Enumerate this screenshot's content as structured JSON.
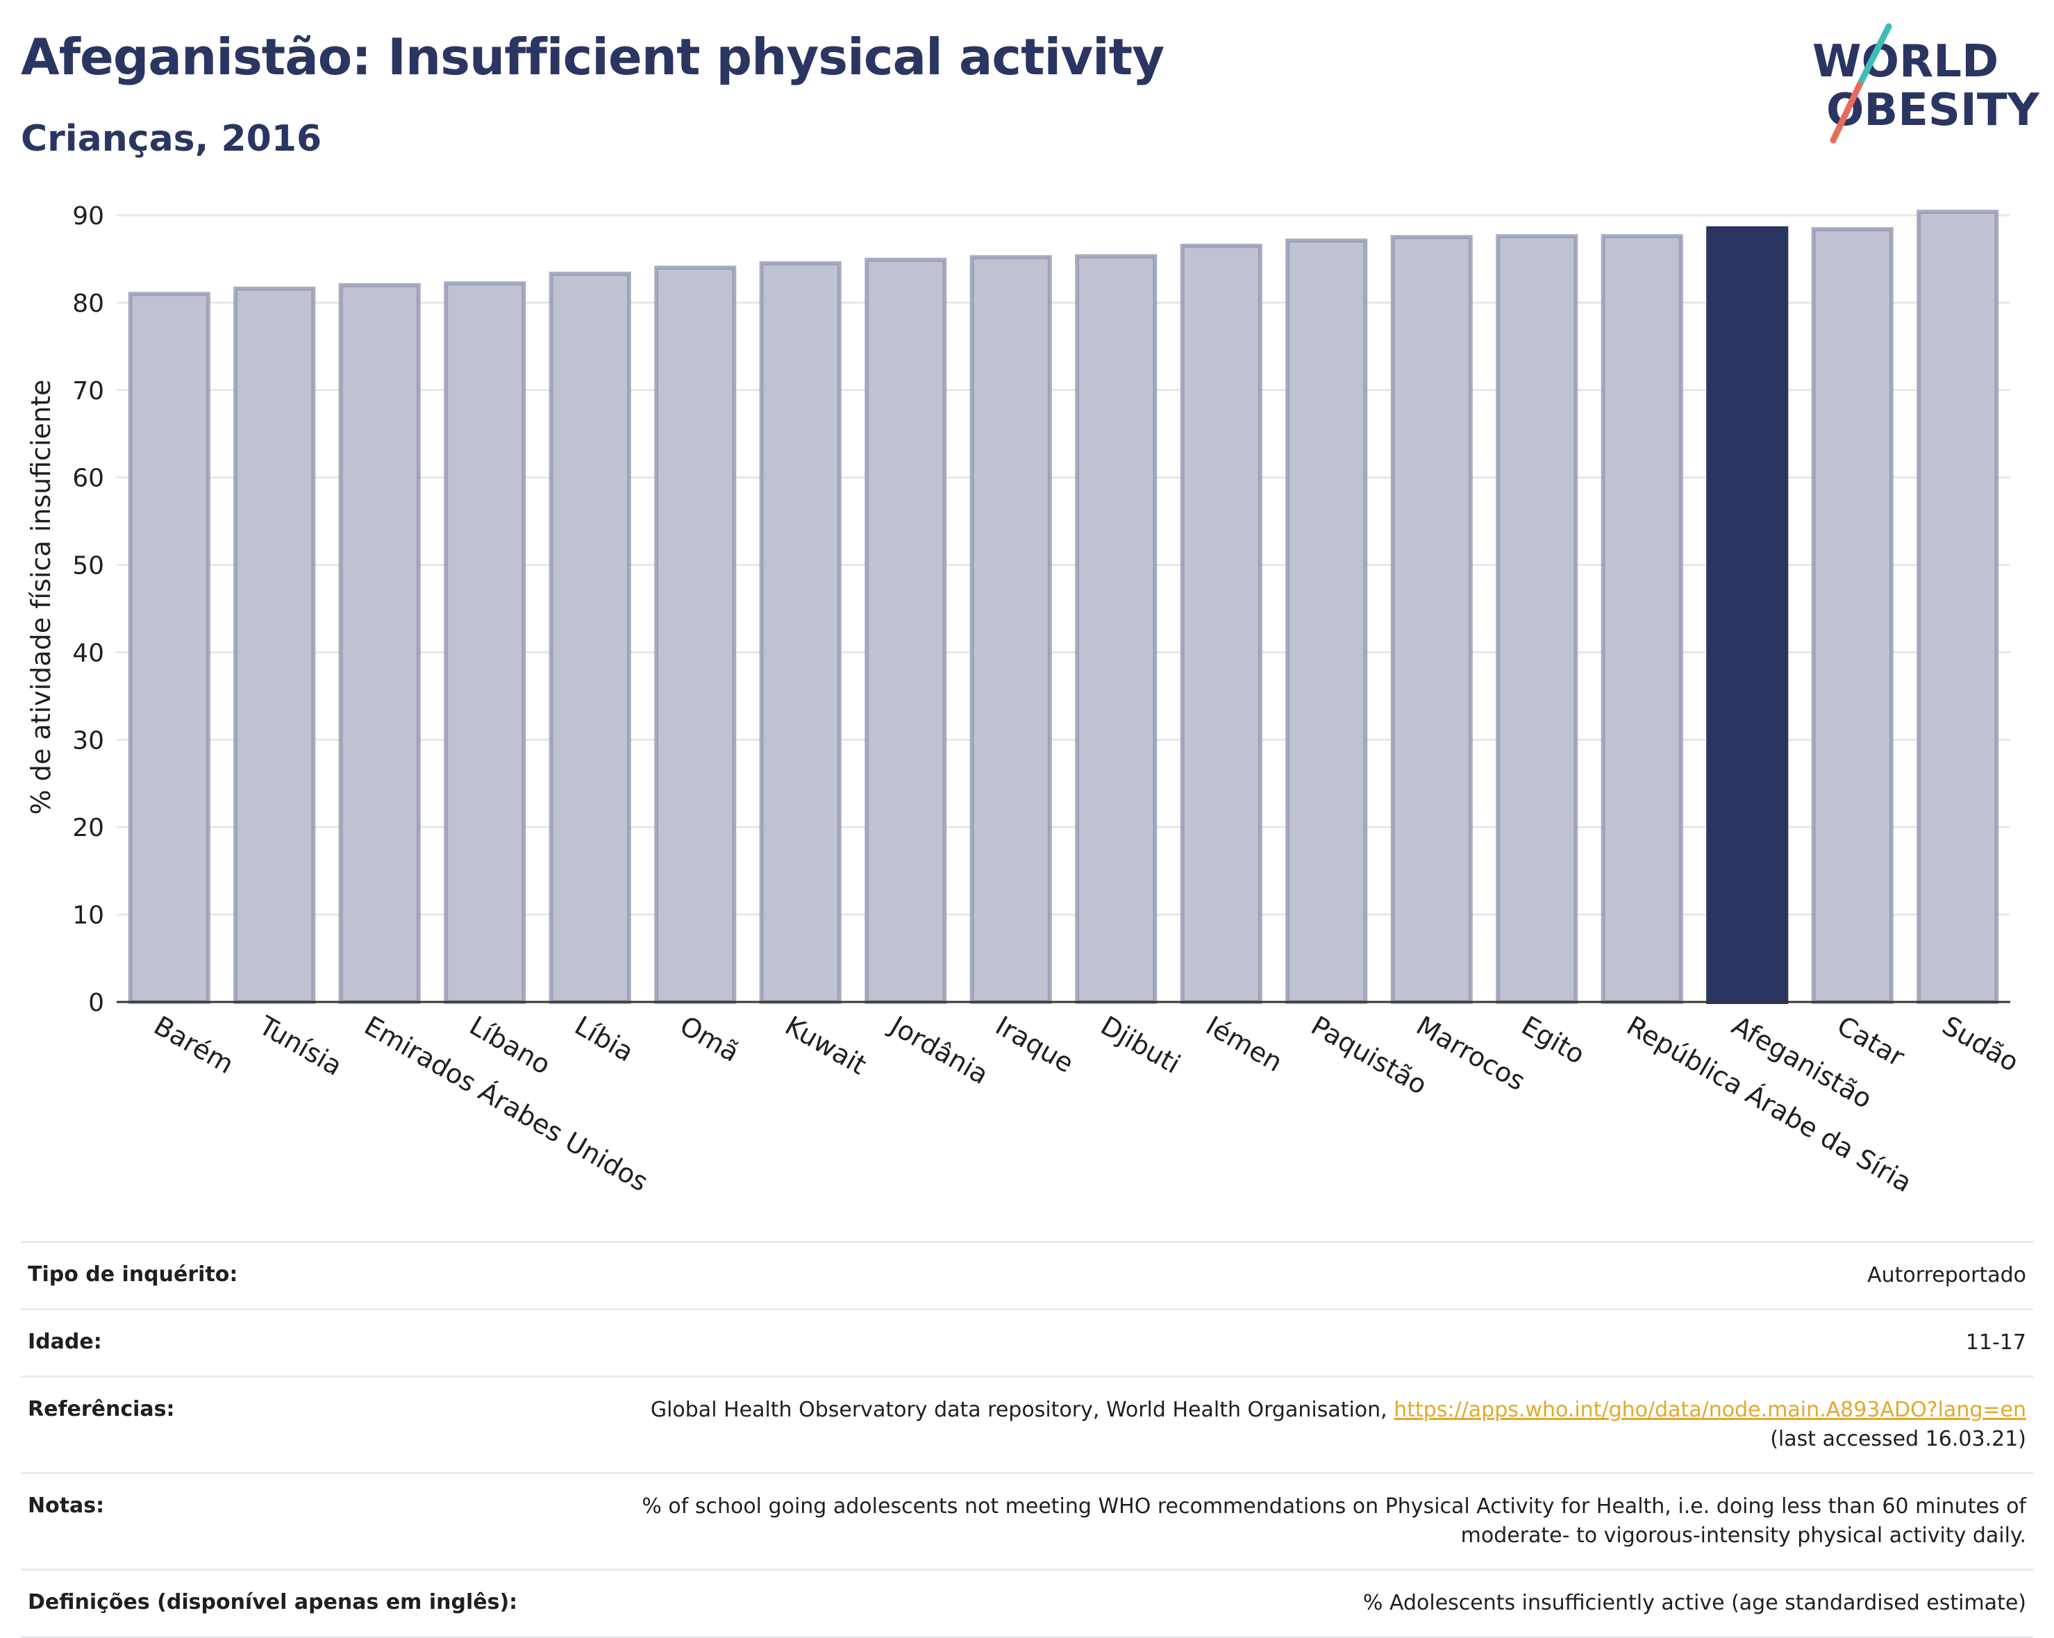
{
  "header": {
    "title": "Afeganistão: Insufficient physical activity",
    "subtitle": "Crianças, 2016"
  },
  "logo": {
    "line1": "WORLD",
    "line2": "OBESITY",
    "accent_teal": "#3dbdb6",
    "accent_coral": "#e86c5d"
  },
  "colors": {
    "bar": "#bfc2d0",
    "bar_border": "#9599b3",
    "highlight": "#2b3561",
    "grid": "#e6e7ec",
    "text": "#2b3561"
  },
  "chart_data": {
    "type": "bar",
    "ylabel": "% de atividade física insuficiente",
    "ylim": [
      0,
      90
    ],
    "yticks": [
      0,
      10,
      20,
      30,
      40,
      50,
      60,
      70,
      80,
      90
    ],
    "highlight": "Afeganistão",
    "categories": [
      "Barém",
      "Tunísia",
      "Emirados Árabes Unidos",
      "Líbano",
      "Líbia",
      "Omã",
      "Kuwait",
      "Jordânia",
      "Iraque",
      "Djibuti",
      "Iémen",
      "Paquistão",
      "Marrocos",
      "Egito",
      "República Árabe da Síria",
      "Afeganistão",
      "Catar",
      "Sudão"
    ],
    "values": [
      81.0,
      81.6,
      82.0,
      82.2,
      83.3,
      84.0,
      84.5,
      84.9,
      85.2,
      85.3,
      86.5,
      87.1,
      87.5,
      87.6,
      87.6,
      88.5,
      88.4,
      90.4
    ]
  },
  "meta": {
    "rows": [
      {
        "label": "Tipo de inquérito:",
        "value": "Autorreportado"
      },
      {
        "label": "Idade:",
        "value": "11-17"
      },
      {
        "label": "Referências:",
        "value": "Global Health Observatory data repository, World Health Organisation,",
        "link": "https://apps.who.int/gho/data/node.main.A893ADO?lang=en",
        "value2": "(last accessed 16.03.21)"
      },
      {
        "label": "Notas:",
        "value": "% of school going adolescents not meeting WHO recommendations on Physical Activity for Health, i.e. doing less than 60 minutes of",
        "value2": "moderate- to vigorous-intensity physical activity daily."
      },
      {
        "label": "Definições (disponível apenas em inglês):",
        "value": "% Adolescents insufficiently active (age standardised estimate)"
      }
    ]
  }
}
